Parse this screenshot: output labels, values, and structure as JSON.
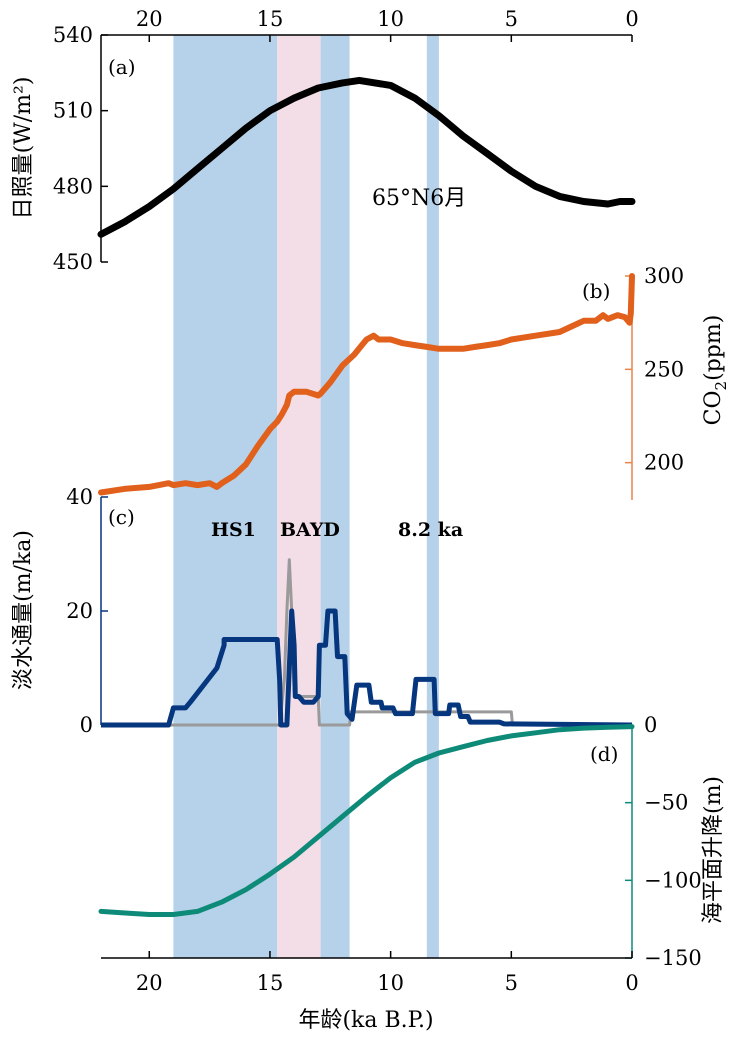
{
  "chart_data": {
    "type": "line",
    "x_axis": {
      "label": "年龄(ka B.P.)",
      "range": [
        22,
        0
      ],
      "ticks": [
        20,
        15,
        10,
        5,
        0
      ]
    },
    "shaded_intervals": [
      {
        "name": "HS1",
        "from": 19.0,
        "to": 14.7,
        "color": "#b6d2ea"
      },
      {
        "name": "BA",
        "from": 14.7,
        "to": 12.9,
        "color": "#f3dde6"
      },
      {
        "name": "YD",
        "from": 12.9,
        "to": 11.7,
        "color": "#b6d2ea"
      },
      {
        "name": "8.2 ka",
        "from": 8.5,
        "to": 8.0,
        "color": "#b6d2ea"
      }
    ],
    "event_labels": [
      "HS1",
      "BAYD",
      "8.2 ka"
    ],
    "panels": [
      {
        "id": "a",
        "panel_label": "(a)",
        "ylabel": "日照量(W/m²)",
        "ylim": [
          450,
          540
        ],
        "yticks": [
          450,
          480,
          510,
          540
        ],
        "annotation": "65°N6月",
        "series": [
          {
            "name": "65°N June insolation",
            "color": "#000000",
            "x": [
              22,
              21,
              20,
              19,
              18,
              17,
              16,
              15,
              14,
              13,
              12,
              11.3,
              10,
              9,
              8,
              7,
              6,
              5,
              4,
              3,
              2,
              1,
              0.5,
              0
            ],
            "y": [
              461,
              466,
              472,
              479,
              487,
              495,
              503,
              510,
              515,
              519,
              521,
              522,
              520,
              515,
              508,
              500,
              493,
              486,
              480,
              476,
              474,
              473,
              474,
              474
            ]
          }
        ]
      },
      {
        "id": "b",
        "panel_label": "(b)",
        "ylabel": "CO2(ppm)",
        "ylim": [
          180,
          300
        ],
        "yticks": [
          200,
          250,
          300
        ],
        "series": [
          {
            "name": "CO2",
            "color": "#e0601c",
            "x": [
              22,
              21,
              20,
              19.2,
              19,
              18.5,
              18,
              17.5,
              17.2,
              17,
              16.5,
              16,
              15.5,
              15,
              14.7,
              14.5,
              14.3,
              14.2,
              14,
              13.5,
              13,
              12.9,
              12.5,
              12,
              11.5,
              11,
              10.7,
              10.5,
              10,
              9.5,
              9,
              8.5,
              8,
              7.5,
              7,
              6.5,
              6,
              5.5,
              5,
              4,
              3,
              2.5,
              2,
              1.5,
              1.2,
              1,
              0.6,
              0.3,
              0.1,
              0.05,
              0
            ],
            "y": [
              184,
              186,
              187,
              189,
              188,
              189,
              188,
              189,
              187,
              189,
              193,
              199,
              209,
              218,
              222,
              226,
              231,
              236,
              238,
              238,
              236,
              237,
              243,
              252,
              258,
              266,
              268,
              266,
              266,
              264,
              263,
              262,
              261,
              261,
              261,
              262,
              263,
              264,
              266,
              268,
              270,
              273,
              276,
              276,
              279,
              277,
              279,
              278,
              275,
              280,
              300
            ]
          }
        ]
      },
      {
        "id": "c",
        "panel_label": "(c)",
        "ylabel": "淡水通量(m/ka)",
        "ylim": [
          0,
          40
        ],
        "yticks": [
          0,
          20,
          40
        ],
        "series": [
          {
            "name": "Freshwater flux",
            "color": "#06367e",
            "x": [
              22,
              19.2,
              19.0,
              18.5,
              18.3,
              17.2,
              16.9,
              16.9,
              14.7,
              14.6,
              14.55,
              14.3,
              14.1,
              14.0,
              13.95,
              13.8,
              13.6,
              13.2,
              13.0,
              12.95,
              12.7,
              12.6,
              12.3,
              12.2,
              11.9,
              11.8,
              11.6,
              11.4,
              10.9,
              10.8,
              10.4,
              10.35,
              9.9,
              9.8,
              9.1,
              8.95,
              8.2,
              8.15,
              7.6,
              7.55,
              7.2,
              7.1,
              6.8,
              6.7,
              5.5,
              5.3,
              0
            ],
            "y": [
              0,
              0,
              3,
              3,
              4,
              10,
              14,
              15,
              15,
              8,
              0,
              0,
              20,
              14,
              5,
              5,
              4,
              4,
              5,
              14,
              14,
              20,
              20,
              12,
              12,
              2,
              1,
              7,
              7,
              4,
              4,
              3,
              3,
              2,
              2,
              8,
              8,
              2,
              2,
              3.5,
              3.5,
              1.5,
              1.5,
              0.5,
              0.5,
              0.2,
              0
            ]
          },
          {
            "name": "Meltwater pulse (gray)",
            "color": "#9a9a9a",
            "x": [
              20,
              14.6,
              14.4,
              14.3,
              14.2,
              14.1,
              14.0,
              13.9,
              13.0,
              12.95,
              11.7,
              11.65,
              5.0,
              4.95,
              0
            ],
            "y": [
              0,
              0,
              8,
              20,
              29,
              20,
              6,
              5,
              5,
              0,
              0,
              2.3,
              2.3,
              0,
              0
            ]
          }
        ]
      },
      {
        "id": "d",
        "panel_label": "(d)",
        "ylabel": "海平面升降(m)",
        "ylim": [
          -150,
          0
        ],
        "yticks": [
          -150,
          -100,
          -50,
          0
        ],
        "series": [
          {
            "name": "Sea level",
            "color": "#0e8a78",
            "x": [
              22,
              21,
              20,
              19,
              18,
              17,
              16,
              15,
              14,
              13,
              12,
              11,
              10,
              9,
              8,
              7,
              6,
              5,
              4,
              3,
              2,
              1,
              0
            ],
            "y": [
              -120,
              -121,
              -122,
              -122,
              -120,
              -114,
              -106,
              -96,
              -85,
              -72,
              -59,
              -46,
              -34,
              -24,
              -18,
              -14,
              -10,
              -7,
              -5,
              -3,
              -2,
              -1.5,
              -1
            ]
          }
        ]
      }
    ]
  }
}
